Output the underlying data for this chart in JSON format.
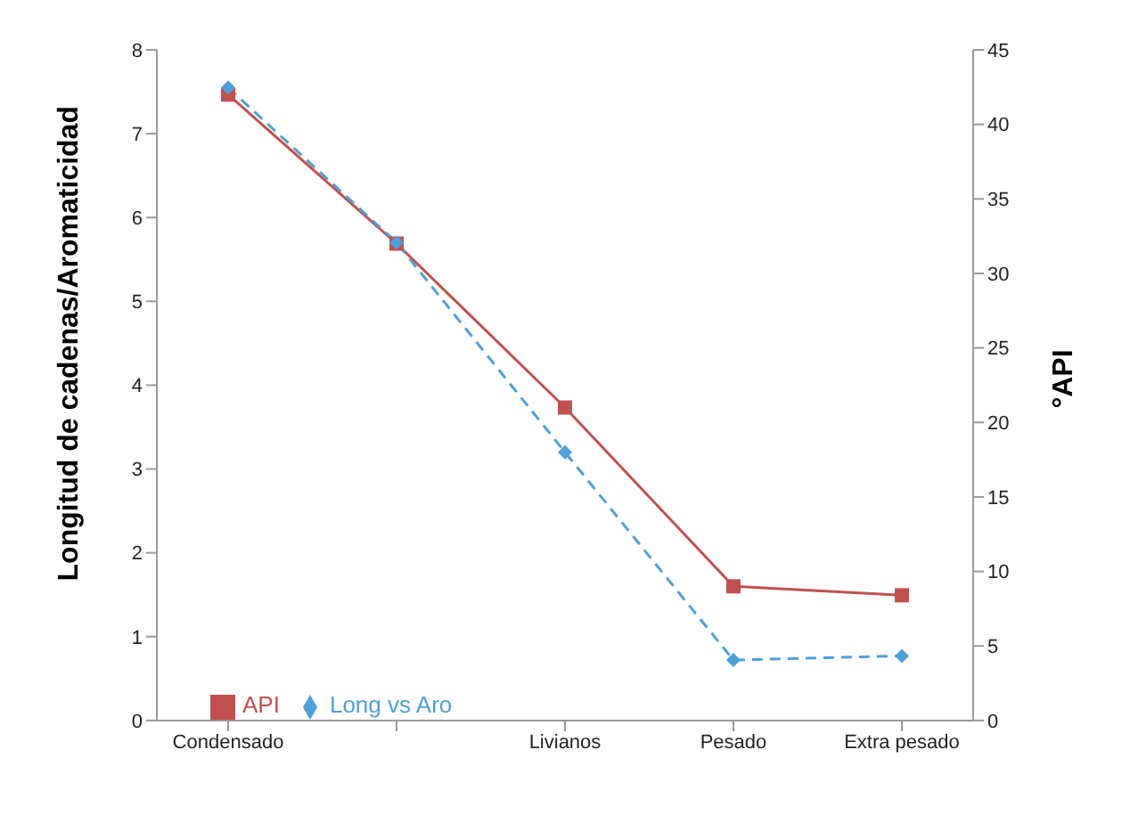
{
  "chart_data": {
    "type": "line",
    "categories": [
      "Condensado",
      null,
      "Livianos",
      "Pesado",
      "Extra pesado"
    ],
    "ylabel": "Longitud de cadenas/Aromaticidad",
    "y2label": "°API",
    "ylim": [
      0,
      8
    ],
    "yticks": [
      0,
      1,
      2,
      3,
      4,
      5,
      6,
      7,
      8
    ],
    "y2lim": [
      0,
      45
    ],
    "y2ticks": [
      0,
      5,
      10,
      15,
      20,
      25,
      30,
      35,
      40,
      45
    ],
    "legend": "bottom left",
    "series": [
      {
        "name": "Long vs Aro",
        "color": "#4f9fd8",
        "values": [
          7.55,
          5.7,
          3.2,
          0.72,
          0.77
        ],
        "marker": "diamond",
        "line_style": "dashed"
      },
      {
        "name": "API",
        "color": "#c0504d",
        "values": [
          42,
          32,
          21,
          9,
          8.4
        ],
        "marker": "square",
        "line_style": "solid",
        "axis": "y2"
      }
    ]
  }
}
